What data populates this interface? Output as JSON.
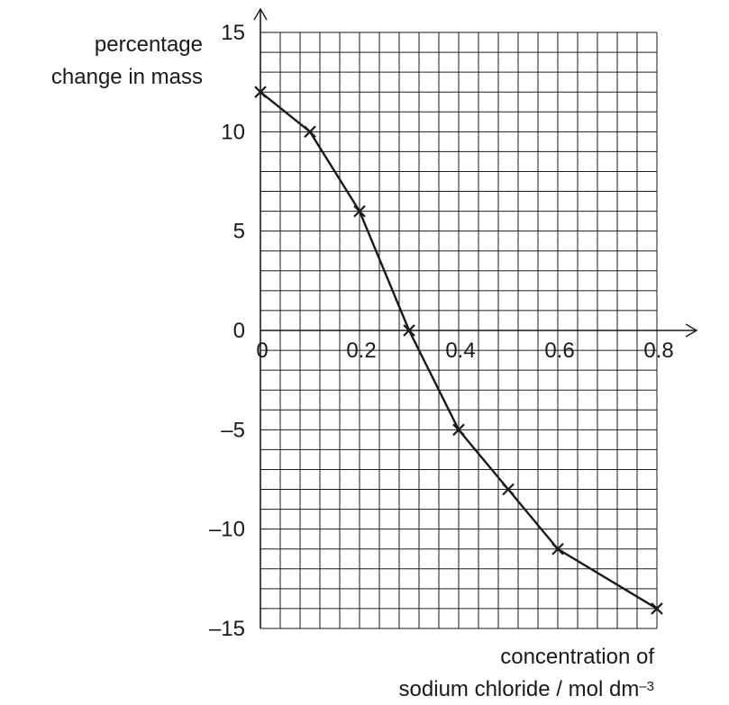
{
  "chart_data": {
    "type": "line",
    "ylabel_lines": [
      "percentage",
      "change in mass"
    ],
    "xlabel_lines": [
      "concentration of",
      "sodium chloride / mol dm"
    ],
    "xlabel_superscript": "–3",
    "xlim": [
      0,
      0.8
    ],
    "ylim": [
      -15,
      15
    ],
    "x_ticks": [
      {
        "value": 0,
        "label": "0"
      },
      {
        "value": 0.2,
        "label": "0.2"
      },
      {
        "value": 0.4,
        "label": "0.4"
      },
      {
        "value": 0.6,
        "label": "0.6"
      },
      {
        "value": 0.8,
        "label": "0.8"
      }
    ],
    "y_ticks": [
      {
        "value": 15,
        "label": "15"
      },
      {
        "value": 10,
        "label": "10"
      },
      {
        "value": 5,
        "label": "5"
      },
      {
        "value": 0,
        "label": "0"
      },
      {
        "value": -5,
        "label": "–5"
      },
      {
        "value": -10,
        "label": "–10"
      },
      {
        "value": -15,
        "label": "–15"
      }
    ],
    "x_minor_step": 0.04,
    "y_minor_step": 1,
    "grid": true,
    "marker": "x",
    "series": [
      {
        "x": [
          0,
          0.1,
          0.2,
          0.3,
          0.4,
          0.5,
          0.6,
          0.8
        ],
        "y": [
          12,
          10,
          6,
          0,
          -5,
          -8,
          -11,
          -14
        ]
      }
    ],
    "colors": {
      "ink": "#1a1a1a",
      "grid": "#1a1a1a"
    }
  }
}
